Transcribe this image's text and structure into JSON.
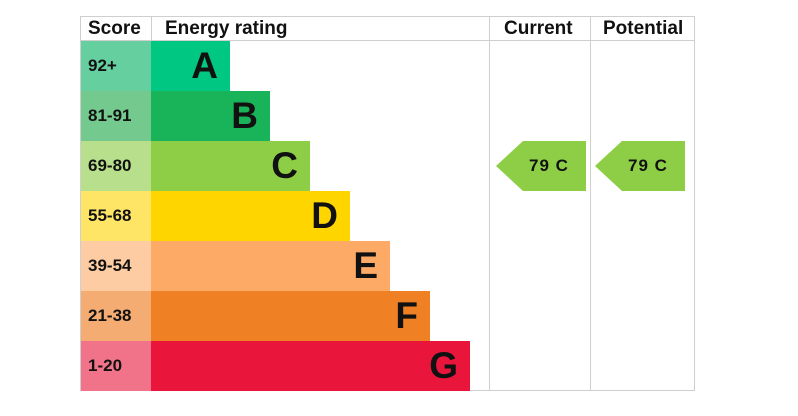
{
  "headers": {
    "score": "Score",
    "rating": "Energy rating",
    "current": "Current",
    "potential": "Potential"
  },
  "chart_data": {
    "type": "bar",
    "bands": [
      {
        "score": "92+",
        "letter": "A",
        "color": "#00c781",
        "score_bg": "#66cfa0"
      },
      {
        "score": "81-91",
        "letter": "B",
        "color": "#19b459",
        "score_bg": "#74c98e"
      },
      {
        "score": "69-80",
        "letter": "C",
        "color": "#8dce46",
        "score_bg": "#b8df8c"
      },
      {
        "score": "55-68",
        "letter": "D",
        "color": "#ffd500",
        "score_bg": "#ffe566"
      },
      {
        "score": "39-54",
        "letter": "E",
        "color": "#fcaa65",
        "score_bg": "#fdcca3"
      },
      {
        "score": "21-38",
        "letter": "F",
        "color": "#ef8023",
        "score_bg": "#f4ac72"
      },
      {
        "score": "1-20",
        "letter": "G",
        "color": "#e9153b",
        "score_bg": "#f07389"
      }
    ],
    "current": {
      "value": 79,
      "band": "C",
      "label": "79  C",
      "color": "#8dce46"
    },
    "potential": {
      "value": 79,
      "band": "C",
      "label": "79  C",
      "color": "#8dce46"
    }
  }
}
